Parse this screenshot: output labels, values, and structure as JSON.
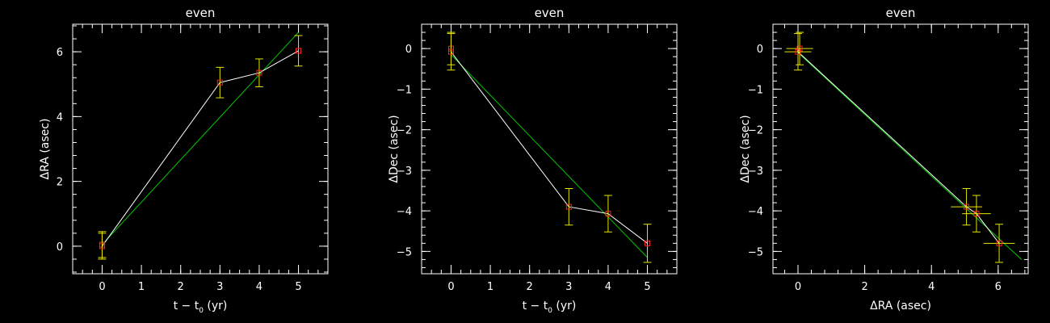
{
  "chart_data": [
    {
      "type": "line",
      "title": "even",
      "xlabel_main": "t − t",
      "xlabel_sub": "0",
      "xlabel_tail": " (yr)",
      "ylabel": "ΔRA (asec)",
      "xlim": [
        -0.75,
        5.75
      ],
      "ylim": [
        -0.85,
        6.85
      ],
      "xticks": [
        0,
        1,
        2,
        3,
        4,
        5
      ],
      "yticks": [
        0,
        2,
        4,
        6
      ],
      "x_minor_step": 0.25,
      "y_minor_step": 0.4,
      "xerr": [
        0,
        0,
        0,
        0,
        0
      ],
      "series": [
        {
          "x": [
            0,
            0,
            3,
            4,
            5
          ],
          "y": [
            0.05,
            0.0,
            5.05,
            5.35,
            6.03
          ],
          "yerr": [
            0.4,
            0.4,
            0.47,
            0.43,
            0.47
          ]
        }
      ],
      "fit": {
        "x": [
          0,
          5
        ],
        "y": [
          0.05,
          6.6
        ]
      },
      "colors": {
        "data": "#ffffff",
        "fit": "#00c800",
        "err": "#e6e600",
        "marker": "#ff2020"
      }
    },
    {
      "type": "line",
      "title": "even",
      "xlabel_main": "t − t",
      "xlabel_sub": "0",
      "xlabel_tail": " (yr)",
      "ylabel": "ΔDec (asec)",
      "xlim": [
        -0.75,
        5.75
      ],
      "ylim": [
        -5.55,
        0.6
      ],
      "xticks": [
        0,
        1,
        2,
        3,
        4,
        5
      ],
      "yticks": [
        0,
        -1,
        -2,
        -3,
        -4,
        -5
      ],
      "x_minor_step": 0.25,
      "y_minor_step": 0.2,
      "xerr": [
        0,
        0,
        0,
        0,
        0
      ],
      "series": [
        {
          "x": [
            0,
            0,
            3,
            4,
            5
          ],
          "y": [
            0.0,
            -0.08,
            -3.9,
            -4.07,
            -4.8
          ],
          "yerr": [
            0.4,
            0.45,
            0.45,
            0.45,
            0.47
          ]
        }
      ],
      "fit": {
        "x": [
          0,
          5
        ],
        "y": [
          -0.15,
          -5.15
        ]
      },
      "colors": {
        "data": "#ffffff",
        "fit": "#00c800",
        "err": "#e6e600",
        "marker": "#ff2020"
      }
    },
    {
      "type": "scatter",
      "title": "even",
      "xlabel_main": "ΔRA (asec)",
      "xlabel_sub": "",
      "xlabel_tail": "",
      "ylabel": "ΔDec (asec)",
      "xlim": [
        -0.75,
        6.9
      ],
      "ylim": [
        -5.55,
        0.6
      ],
      "xticks": [
        0,
        2,
        4,
        6
      ],
      "yticks": [
        0,
        -1,
        -2,
        -3,
        -4,
        -5
      ],
      "x_minor_step": 0.4,
      "y_minor_step": 0.2,
      "xerr": [
        0.4,
        0.4,
        0.47,
        0.43,
        0.47
      ],
      "series": [
        {
          "x": [
            0.05,
            0.0,
            5.05,
            5.35,
            6.03
          ],
          "y": [
            0.0,
            -0.08,
            -3.9,
            -4.07,
            -4.8
          ],
          "yerr": [
            0.4,
            0.45,
            0.45,
            0.45,
            0.47
          ]
        }
      ],
      "fit": {
        "x": [
          0.0,
          6.7
        ],
        "y": [
          -0.1,
          -5.2
        ]
      },
      "colors": {
        "data": "#ffffff",
        "fit": "#00c800",
        "err": "#e6e600",
        "marker": "#ff2020"
      }
    }
  ]
}
